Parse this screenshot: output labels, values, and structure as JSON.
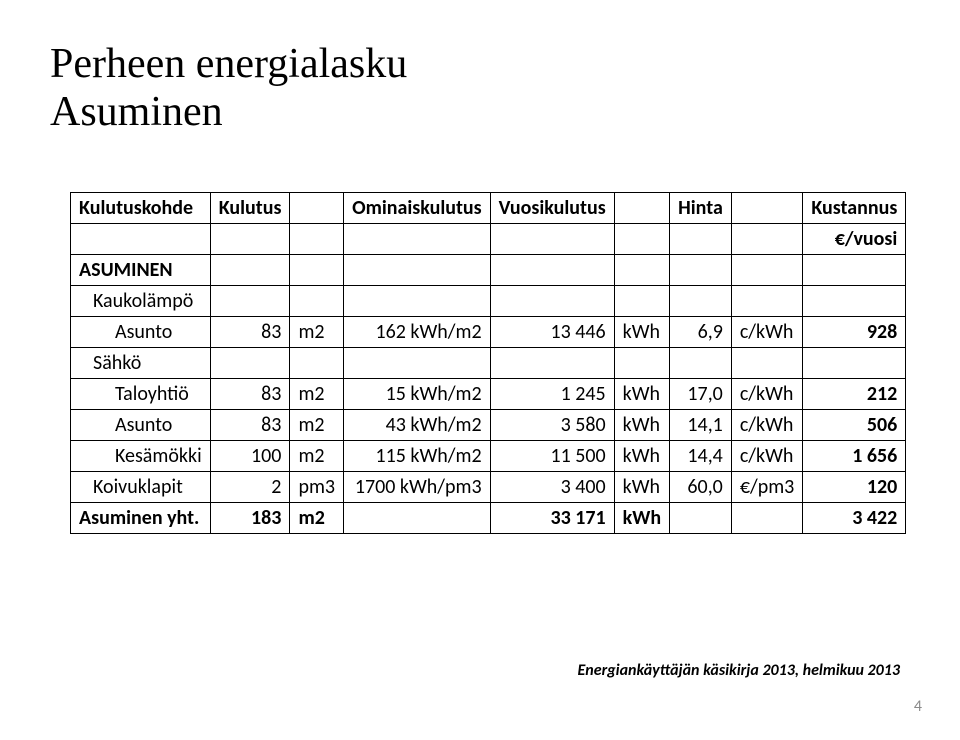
{
  "title_line1": "Perheen energialasku",
  "title_line2": "Asuminen",
  "headers": {
    "c1": "Kulutuskohde",
    "c2": "Kulutus",
    "c4": "Ominaiskulutus",
    "c5": "Vuosikulutus",
    "c7": "Hinta",
    "c9": "Kustannus",
    "c9b": "€/vuosi"
  },
  "section": "ASUMINEN",
  "rows": {
    "kaukolampo": {
      "label": "Kaukolämpö"
    },
    "asunto1": {
      "label": "Asunto",
      "q": "83",
      "qu": "m2",
      "o": "162 kWh/m2",
      "v": "13 446",
      "vu": "kWh",
      "h": "6,9",
      "hu": "c/kWh",
      "k": "928"
    },
    "sahko": {
      "label": "Sähkö"
    },
    "taloyhtio": {
      "label": "Taloyhtiö",
      "q": "83",
      "qu": "m2",
      "o": "15 kWh/m2",
      "v": "1 245",
      "vu": "kWh",
      "h": "17,0",
      "hu": "c/kWh",
      "k": "212"
    },
    "asunto2": {
      "label": "Asunto",
      "q": "83",
      "qu": "m2",
      "o": "43 kWh/m2",
      "v": "3 580",
      "vu": "kWh",
      "h": "14,1",
      "hu": "c/kWh",
      "k": "506"
    },
    "kesamokki": {
      "label": "Kesämökki",
      "q": "100",
      "qu": "m2",
      "o": "115 kWh/m2",
      "v": "11 500",
      "vu": "kWh",
      "h": "14,4",
      "hu": "c/kWh",
      "k": "1 656"
    },
    "koivuklapit": {
      "label": "Koivuklapit",
      "q": "2",
      "qu": "pm3",
      "o": "1700 kWh/pm3",
      "v": "3 400",
      "vu": "kWh",
      "h": "60,0",
      "hu": "€/pm3",
      "k": "120"
    }
  },
  "total": {
    "label": "Asuminen yht.",
    "q": "183",
    "qu": "m2",
    "v": "33 171",
    "vu": "kWh",
    "k": "3 422"
  },
  "source": "Energiankäyttäjän käsikirja 2013, helmikuu 2013",
  "pagenum": "4"
}
